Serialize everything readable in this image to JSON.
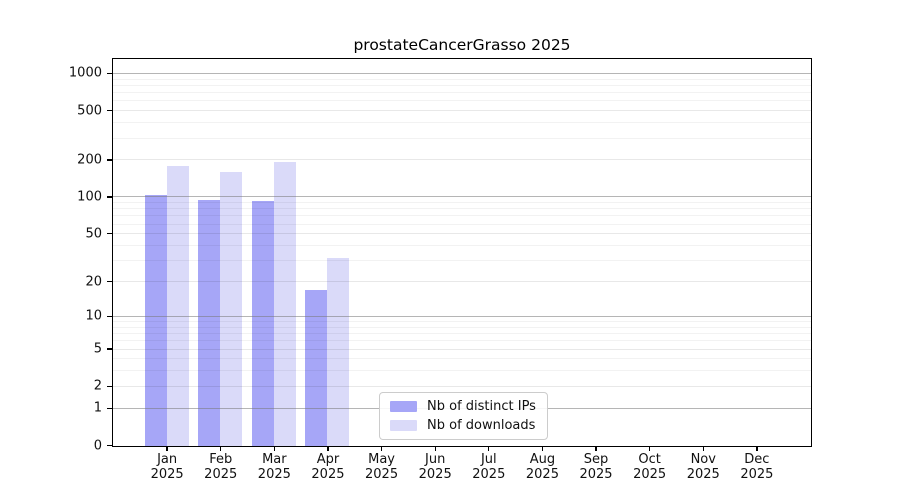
{
  "chart_data": {
    "type": "bar",
    "title": "prostateCancerGrasso 2025",
    "categories": [
      "Jan 2025",
      "Feb 2025",
      "Mar 2025",
      "Apr 2025",
      "May 2025",
      "Jun 2025",
      "Jul 2025",
      "Aug 2025",
      "Sep 2025",
      "Oct 2025",
      "Nov 2025",
      "Dec 2025"
    ],
    "series": [
      {
        "name": "Nb of distinct IPs",
        "color": "#a6a6f7",
        "values": [
          104,
          96,
          93,
          17,
          0,
          0,
          0,
          0,
          0,
          0,
          0,
          0
        ]
      },
      {
        "name": "Nb of downloads",
        "color": "#dadaf9",
        "values": [
          181,
          161,
          193,
          32,
          0,
          0,
          0,
          0,
          0,
          0,
          0,
          0
        ]
      }
    ],
    "xlabel": "",
    "ylabel": "",
    "yscale": "log1p",
    "yticks": [
      0,
      1,
      2,
      5,
      10,
      20,
      50,
      100,
      200,
      500,
      1000
    ],
    "ylim": [
      0,
      1350
    ],
    "grid": "horizontal",
    "legend_position": "bottom-center-left"
  },
  "colors": {
    "grid_decade": "rgba(120,120,120,0.55)",
    "grid_labeled": "rgba(0,0,0,0.09)",
    "grid_minor": "rgba(0,0,0,0.05)",
    "axis": "#000000"
  },
  "grid_minor_values": [
    3,
    4,
    6,
    7,
    8,
    9,
    30,
    40,
    60,
    70,
    80,
    90,
    300,
    400,
    600,
    700,
    800,
    900
  ],
  "grid_labeled_values": [
    2,
    5,
    20,
    50,
    200,
    500
  ],
  "grid_decade_values": [
    1,
    10,
    100,
    1000
  ]
}
